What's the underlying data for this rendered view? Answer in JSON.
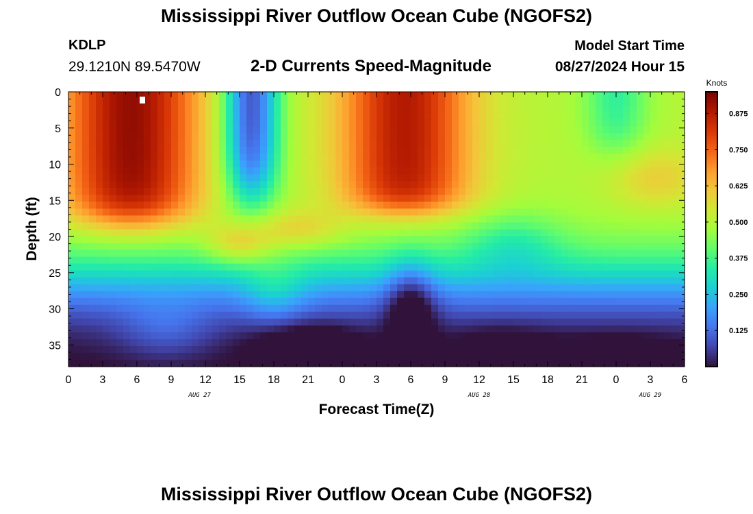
{
  "header": {
    "title": "Mississippi River Outflow Ocean Cube (NGOFS2)",
    "station_id": "KDLP",
    "station_coords": "29.1210N  89.5470W",
    "subtitle": "2-D Currents Speed-Magnitude",
    "model_start_label": "Model Start Time",
    "model_start_value": "08/27/2024 Hour 15"
  },
  "footer": {
    "title": "Mississippi River Outflow Ocean Cube (NGOFS2)"
  },
  "chart_data": {
    "type": "heatmap",
    "title": "2-D Currents Speed-Magnitude",
    "xlabel": "Forecast Time(Z)",
    "ylabel": "Depth (ft)",
    "x_range_hours": [
      0,
      54
    ],
    "y_range_ft": [
      0,
      38
    ],
    "y_inverted": true,
    "x_tick_labels": [
      "0",
      "3",
      "6",
      "9",
      "12",
      "15",
      "18",
      "21",
      "0",
      "3",
      "6",
      "9",
      "12",
      "15",
      "18",
      "21",
      "0",
      "3",
      "6"
    ],
    "y_tick_labels": [
      "0",
      "5",
      "10",
      "15",
      "20",
      "25",
      "30",
      "35"
    ],
    "date_labels": [
      {
        "text": "AUG 27",
        "hour": 11.5
      },
      {
        "text": "AUG 28",
        "hour": 36
      },
      {
        "text": "AUG 29",
        "hour": 51
      }
    ],
    "colorbar": {
      "unit": "Knots",
      "ticks": [
        "0.125",
        "0.250",
        "0.375",
        "0.500",
        "0.625",
        "0.750",
        "0.875"
      ],
      "range": [
        0,
        0.95
      ],
      "colors": [
        "#30123b",
        "#4145ab",
        "#4675ed",
        "#39a2fc",
        "#1bcfd4",
        "#24eca6",
        "#61fc6c",
        "#a4fc3b",
        "#d1e834",
        "#f3c63a",
        "#fe9b2d",
        "#f36315",
        "#d93806",
        "#b11901",
        "#7a0403"
      ]
    },
    "grid": false,
    "legend": "right"
  }
}
